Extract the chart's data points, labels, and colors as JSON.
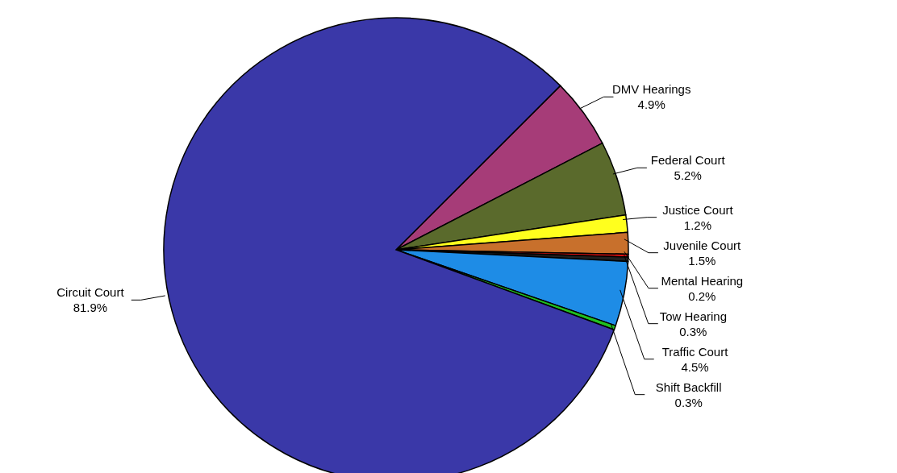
{
  "chart_data": {
    "type": "pie",
    "categories": [
      "DMV Hearings",
      "Federal Court",
      "Justice Court",
      "Juvenile Court",
      "Mental Hearing",
      "Tow Hearing",
      "Traffic Court",
      "Shift Backfill",
      "Circuit Court"
    ],
    "values": [
      4.9,
      5.2,
      1.2,
      1.5,
      0.2,
      0.3,
      4.5,
      0.3,
      81.9
    ],
    "value_labels": [
      "4.9%",
      "5.2%",
      "1.2%",
      "1.5%",
      "0.2%",
      "0.3%",
      "4.5%",
      "0.3%",
      "81.9%"
    ],
    "colors": [
      "#a63c78",
      "#5a6a2c",
      "#ffff1e",
      "#c8702c",
      "#e01010",
      "#202020",
      "#1e8ce6",
      "#20c020",
      "#3a38a8"
    ],
    "legend": false
  }
}
